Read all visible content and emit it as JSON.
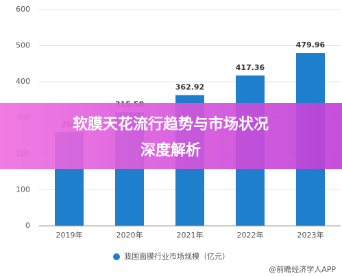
{
  "chart_data": {
    "type": "bar",
    "categories": [
      "2019年",
      "2020年",
      "2021年",
      "2022年",
      "2023年"
    ],
    "series": [
      {
        "name": "我国面膜行业市场规模（亿元）",
        "color": "#1e7fcd",
        "values": [
          260,
          315.58,
          362.92,
          417.36,
          479.96
        ]
      }
    ],
    "ylim": [
      0,
      600
    ],
    "yticks": [
      0,
      100,
      200,
      300,
      400,
      500,
      600
    ],
    "grid": true,
    "banner": [
      "软膜天花流行趋势与市场状况",
      "深度解析"
    ],
    "source": "@前瞻经济学人APP"
  }
}
